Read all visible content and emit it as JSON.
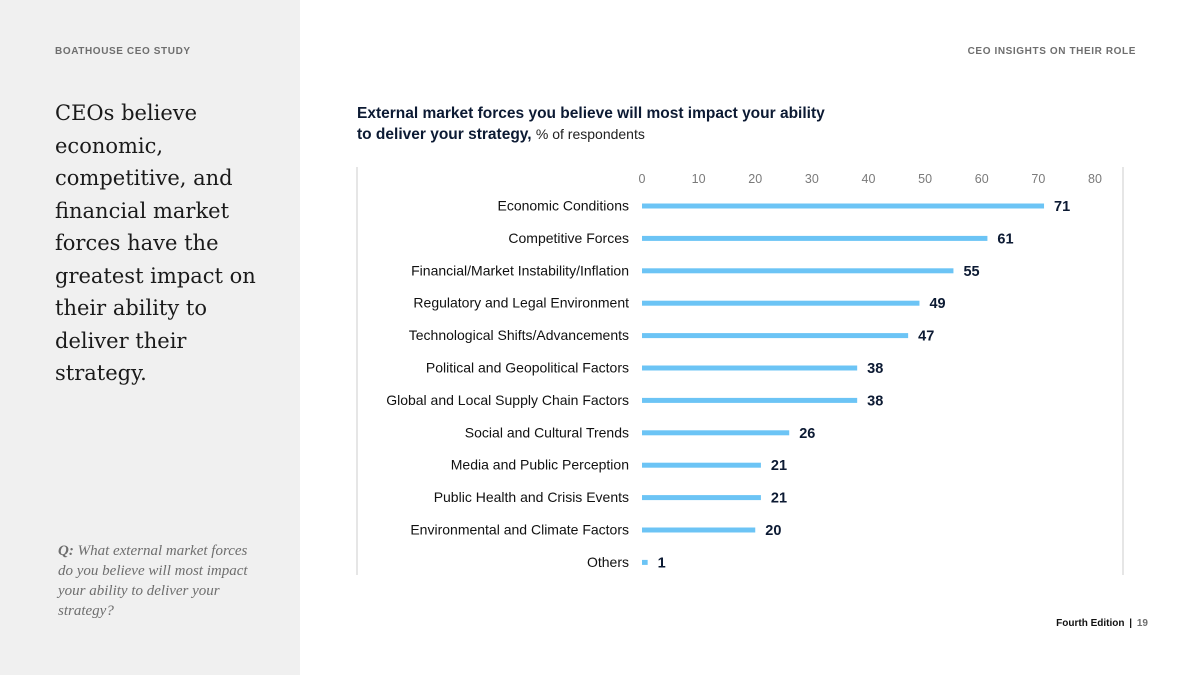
{
  "sidebar": {
    "study_label": "BOATHOUSE CEO STUDY",
    "headline": "CEOs believe economic, competitive, and financial market forces have the greatest impact on their ability to deliver their strategy.",
    "question_lead": "Q:",
    "question_text": "What external market forces do you believe will most impact your ability to deliver your strategy?"
  },
  "header": {
    "section_label": "CEO INSIGHTS ON THEIR ROLE"
  },
  "chart_data": {
    "type": "bar",
    "orientation": "horizontal",
    "title": "External market forces you believe will most impact your ability to deliver your strategy,",
    "title_unit": "% of respondents",
    "categories": [
      "Economic Conditions",
      "Competitive Forces",
      "Financial/Market Instability/Inflation",
      "Regulatory and Legal Environment",
      "Technological Shifts/Advancements",
      "Political and Geopolitical Factors",
      "Global and Local Supply Chain Factors",
      "Social and Cultural Trends",
      "Media and Public Perception",
      "Public Health and Crisis Events",
      "Environmental and Climate Factors",
      "Others"
    ],
    "values": [
      71,
      61,
      55,
      49,
      47,
      38,
      38,
      26,
      21,
      21,
      20,
      1
    ],
    "xlim": [
      0,
      80
    ],
    "xticks": [
      0,
      10,
      20,
      30,
      40,
      50,
      60,
      70,
      80
    ],
    "bar_color": "#6cc4f5",
    "value_label_color": "#0c1a33",
    "grid": false
  },
  "footer": {
    "edition": "Fourth Edition",
    "separator": "|",
    "page": "19"
  }
}
